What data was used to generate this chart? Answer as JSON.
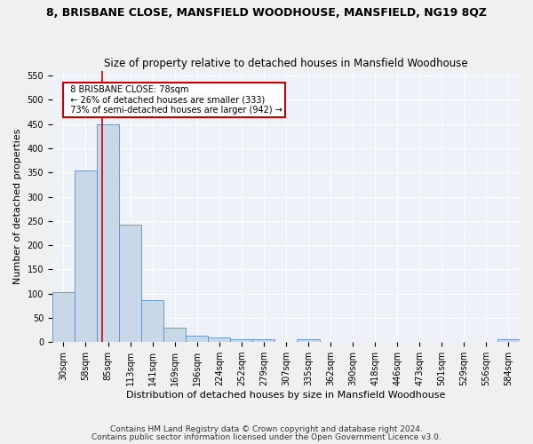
{
  "title": "8, BRISBANE CLOSE, MANSFIELD WOODHOUSE, MANSFIELD, NG19 8QZ",
  "subtitle": "Size of property relative to detached houses in Mansfield Woodhouse",
  "xlabel": "Distribution of detached houses by size in Mansfield Woodhouse",
  "ylabel": "Number of detached properties",
  "footnote1": "Contains HM Land Registry data © Crown copyright and database right 2024.",
  "footnote2": "Contains public sector information licensed under the Open Government Licence v3.0.",
  "bin_labels": [
    "30sqm",
    "58sqm",
    "85sqm",
    "113sqm",
    "141sqm",
    "169sqm",
    "196sqm",
    "224sqm",
    "252sqm",
    "279sqm",
    "307sqm",
    "335sqm",
    "362sqm",
    "390sqm",
    "418sqm",
    "446sqm",
    "473sqm",
    "501sqm",
    "529sqm",
    "556sqm",
    "584sqm"
  ],
  "bar_values": [
    103,
    355,
    450,
    243,
    87,
    30,
    13,
    9,
    5,
    5,
    0,
    5,
    0,
    0,
    0,
    0,
    0,
    0,
    0,
    0,
    5
  ],
  "bar_color": "#c8d8e8",
  "bar_edge_color": "#5a8fc0",
  "annotation_text1": "8 BRISBANE CLOSE: 78sqm",
  "annotation_text2": "← 26% of detached houses are smaller (333)",
  "annotation_text3": "73% of semi-detached houses are larger (942) →",
  "annotation_box_color": "#ffffff",
  "annotation_border_color": "#cc0000",
  "vline_color": "#cc0000",
  "ylim": [
    0,
    560
  ],
  "yticks": [
    0,
    50,
    100,
    150,
    200,
    250,
    300,
    350,
    400,
    450,
    500,
    550
  ],
  "background_color": "#eef2f8",
  "grid_color": "#ffffff",
  "title_fontsize": 9,
  "subtitle_fontsize": 8.5,
  "axis_label_fontsize": 8,
  "tick_fontsize": 7,
  "footnote_fontsize": 6.5,
  "fig_facecolor": "#f0f0f0"
}
